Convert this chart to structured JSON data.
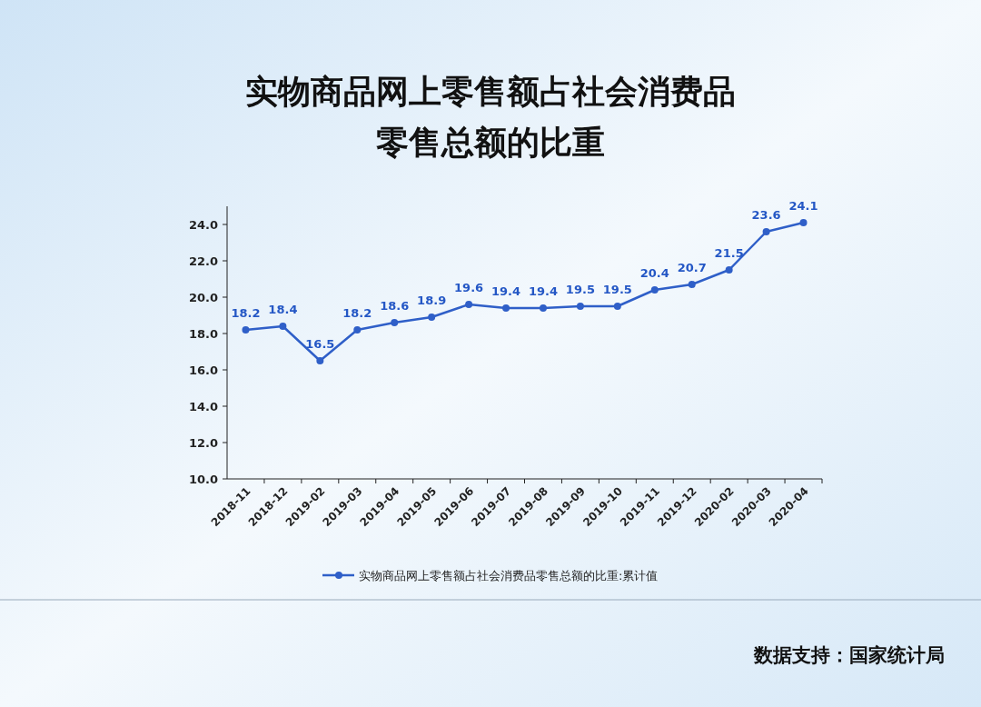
{
  "chart_data": {
    "type": "line",
    "title": "实物商品网上零售额占社会消费品零售总额的比重",
    "categories": [
      "2018-11",
      "2018-12",
      "2019-02",
      "2019-03",
      "2019-04",
      "2019-05",
      "2019-06",
      "2019-07",
      "2019-08",
      "2019-09",
      "2019-10",
      "2019-11",
      "2019-12",
      "2020-02",
      "2020-03",
      "2020-04"
    ],
    "series": [
      {
        "name": "实物商品网上零售额占社会消费品零售总额的比重:累计值",
        "color": "#2f5fc8",
        "values": [
          18.2,
          18.4,
          16.5,
          18.2,
          18.6,
          18.9,
          19.6,
          19.4,
          19.4,
          19.5,
          19.5,
          20.4,
          20.7,
          21.5,
          23.6,
          24.1
        ]
      }
    ],
    "ylim": [
      10,
      25
    ],
    "yticks": [
      {
        "value": 10,
        "label": "10.0"
      },
      {
        "value": 12,
        "label": "12.0"
      },
      {
        "value": 14,
        "label": "14.0"
      },
      {
        "value": 16,
        "label": "16.0"
      },
      {
        "value": 18,
        "label": "18.0"
      },
      {
        "value": 20,
        "label": "20.0"
      },
      {
        "value": 22,
        "label": "22.0"
      },
      {
        "value": 24,
        "label": "24.0"
      }
    ],
    "data_labels": true,
    "marker": "circle",
    "legend": "bottom",
    "grid": false,
    "annotations": [
      "数据支持：国家统计局"
    ]
  }
}
